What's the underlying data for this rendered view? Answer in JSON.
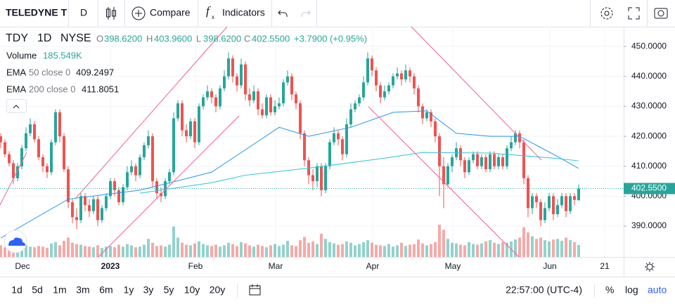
{
  "toolbar": {
    "symbol": "TELEDYNE T",
    "interval": "D",
    "compare": "Compare",
    "indicators": "Indicators"
  },
  "legend": {
    "symbol": "TDY",
    "interval": "1D",
    "exchange": "NYSE",
    "o_label": "O",
    "o": "398.6200",
    "h_label": "H",
    "h": "403.9600",
    "l_label": "L",
    "l": "398.6200",
    "c_label": "C",
    "c": "402.5500",
    "change": "+3.7900 (+0.95%)"
  },
  "bottom_bar": {
    "timeframes": [
      "1d",
      "5d",
      "1m",
      "3m",
      "6m",
      "1y",
      "3y",
      "5y",
      "10y",
      "20y"
    ],
    "time": "22:57:00 (UTC-4)",
    "percent": "%",
    "log": "log",
    "auto": "auto"
  },
  "chart_data": {
    "type": "candlestick",
    "up_color": "#26a69a",
    "down_color": "#ef5350",
    "open": [
      420,
      418,
      414,
      411,
      406,
      410,
      416,
      421,
      424,
      419,
      413,
      410,
      408,
      418,
      428,
      420,
      409,
      398,
      393,
      392,
      400,
      397,
      395,
      399,
      392,
      396,
      400,
      405,
      402,
      398,
      403,
      408,
      410,
      407,
      413,
      417,
      420,
      405,
      401,
      400,
      405,
      408,
      426,
      431,
      422,
      420,
      425,
      418,
      430,
      433,
      435,
      433,
      430,
      436,
      440,
      446,
      440,
      437,
      444,
      434,
      432,
      435,
      429,
      427,
      433,
      428,
      430,
      431,
      438,
      440,
      434,
      431,
      421,
      412,
      407,
      405,
      410,
      402,
      410,
      418,
      421,
      419,
      414,
      424,
      429,
      431,
      433,
      438,
      446,
      442,
      437,
      433,
      435,
      437,
      440,
      441,
      439,
      442,
      440,
      436,
      430,
      426,
      428,
      425,
      420,
      410,
      404,
      410,
      413,
      416,
      412,
      408,
      412,
      414,
      410,
      413,
      409,
      414,
      410,
      413,
      410,
      416,
      418,
      421,
      418,
      406,
      396,
      400,
      398,
      392,
      396,
      400,
      394,
      397,
      400,
      395,
      400,
      398.62
    ],
    "high": [
      421,
      419,
      415,
      412,
      411,
      417,
      423,
      426,
      425,
      420,
      414,
      411,
      419,
      429,
      429,
      421,
      410,
      399,
      396,
      401,
      401,
      399,
      400,
      400,
      397,
      401,
      406,
      406,
      403,
      404,
      410,
      412,
      411,
      414,
      418,
      422,
      421,
      406,
      403,
      406,
      409,
      428,
      432,
      432,
      424,
      426,
      426,
      431,
      434,
      437,
      436,
      434,
      437,
      442,
      448,
      447,
      441,
      446,
      445,
      436,
      437,
      436,
      431,
      434,
      434,
      432,
      433,
      439,
      442,
      441,
      435,
      432,
      422,
      413,
      409,
      411,
      411,
      411,
      419,
      423,
      422,
      420,
      426,
      431,
      432,
      434,
      440,
      448,
      447,
      443,
      438,
      437,
      438,
      441,
      443,
      442,
      444,
      443,
      441,
      437,
      431,
      429,
      429,
      426,
      421,
      413,
      411,
      414,
      418,
      417,
      413,
      413,
      415,
      415,
      414,
      414,
      415,
      415,
      414,
      414,
      417,
      420,
      422,
      422,
      419,
      407,
      401,
      401,
      399,
      398,
      401,
      401,
      399,
      401,
      401,
      401,
      401,
      403.96
    ],
    "low": [
      416,
      413,
      410,
      404,
      405,
      409,
      415,
      420,
      418,
      412,
      408,
      406,
      407,
      417,
      418,
      408,
      396,
      391,
      389,
      391,
      395,
      393,
      394,
      390,
      391,
      395,
      399,
      400,
      397,
      397,
      402,
      407,
      405,
      406,
      412,
      416,
      403,
      399,
      398,
      399,
      404,
      407,
      425,
      420,
      418,
      419,
      416,
      417,
      429,
      432,
      431,
      428,
      429,
      435,
      439,
      438,
      435,
      436,
      432,
      430,
      431,
      427,
      426,
      426,
      427,
      427,
      429,
      430,
      437,
      432,
      429,
      419,
      410,
      404,
      402,
      403,
      400,
      401,
      409,
      417,
      417,
      412,
      413,
      423,
      428,
      430,
      432,
      437,
      440,
      435,
      431,
      432,
      434,
      436,
      439,
      437,
      438,
      438,
      434,
      428,
      424,
      425,
      423,
      418,
      400,
      396,
      403,
      408,
      412,
      410,
      406,
      407,
      411,
      409,
      409,
      408,
      408,
      409,
      409,
      409,
      409,
      415,
      417,
      416,
      404,
      393,
      394,
      396,
      390,
      391,
      395,
      392,
      393,
      396,
      393,
      394,
      397,
      398.62
    ],
    "close": [
      418,
      414,
      411,
      406,
      410,
      416,
      421,
      424,
      419,
      413,
      410,
      408,
      418,
      428,
      420,
      409,
      398,
      393,
      392,
      400,
      397,
      395,
      399,
      392,
      396,
      400,
      405,
      402,
      398,
      403,
      408,
      410,
      407,
      413,
      417,
      420,
      405,
      401,
      400,
      405,
      408,
      426,
      431,
      422,
      420,
      425,
      418,
      430,
      433,
      435,
      433,
      430,
      436,
      440,
      446,
      440,
      437,
      444,
      434,
      432,
      435,
      429,
      427,
      433,
      428,
      430,
      431,
      438,
      440,
      434,
      431,
      421,
      412,
      407,
      405,
      410,
      402,
      410,
      418,
      421,
      419,
      414,
      424,
      429,
      431,
      433,
      438,
      446,
      442,
      437,
      433,
      435,
      437,
      440,
      441,
      439,
      442,
      440,
      436,
      430,
      426,
      428,
      425,
      420,
      410,
      404,
      410,
      413,
      416,
      412,
      408,
      412,
      414,
      410,
      413,
      409,
      414,
      410,
      413,
      410,
      416,
      418,
      421,
      418,
      406,
      396,
      400,
      398,
      392,
      396,
      400,
      394,
      397,
      400,
      395,
      400,
      398.76,
      402.55
    ],
    "volume": [
      180000,
      150000,
      160000,
      140000,
      170000,
      200000,
      190000,
      160000,
      150000,
      170000,
      160000,
      140000,
      210000,
      230000,
      180000,
      250000,
      300000,
      220000,
      200000,
      190000,
      170000,
      160000,
      150000,
      180000,
      140000,
      160000,
      170000,
      150000,
      190000,
      160000,
      200000,
      180000,
      150000,
      160000,
      190000,
      280000,
      220000,
      170000,
      180000,
      160000,
      190000,
      470000,
      300000,
      220000,
      190000,
      180000,
      210000,
      240000,
      200000,
      180000,
      170000,
      190000,
      160000,
      180000,
      220000,
      200000,
      170000,
      230000,
      210000,
      180000,
      160000,
      190000,
      170000,
      150000,
      180000,
      200000,
      170000,
      190000,
      250000,
      180000,
      170000,
      260000,
      310000,
      220000,
      240000,
      200000,
      360000,
      280000,
      230000,
      210000,
      190000,
      200000,
      240000,
      220000,
      180000,
      200000,
      230000,
      260000,
      220000,
      190000,
      180000,
      170000,
      200000,
      160000,
      180000,
      220000,
      170000,
      190000,
      200000,
      270000,
      210000,
      180000,
      200000,
      230000,
      500000,
      420000,
      280000,
      220000,
      210000,
      190000,
      180000,
      230000,
      200000,
      190000,
      210000,
      240000,
      260000,
      220000,
      200000,
      230000,
      220000,
      240000,
      270000,
      300000,
      460000,
      380000,
      320000,
      280000,
      300000,
      260000,
      240000,
      270000,
      280000,
      250000,
      300000,
      260000,
      230000,
      185549
    ],
    "volume_name": "Volume",
    "volume_label": "185.549K",
    "ema": [
      {
        "name": "EMA",
        "params": "50 close 0",
        "value_label": "409.2497",
        "color": "#2196f3",
        "x": [
          0,
          16,
          33,
          50,
          66,
          73,
          83,
          93,
          101,
          108,
          116,
          123,
          131,
          137
        ],
        "values": [
          386,
          399,
          402,
          408,
          423,
          420,
          423,
          428,
          428.5,
          421,
          420,
          420,
          414,
          409.2497
        ]
      },
      {
        "name": "EMA",
        "params": "200 close 0",
        "value_label": "411.8051",
        "color": "#26c6da",
        "x": [
          33,
          50,
          58,
          75,
          91,
          100,
          116,
          131,
          137
        ],
        "values": [
          401,
          404.5,
          407,
          409.7,
          412.7,
          414.6,
          414.4,
          412.7,
          411.8051
        ]
      }
    ],
    "ylim": [
      379.7,
      456.6
    ],
    "yticks": [
      {
        "value": 390,
        "label": "390.0000"
      },
      {
        "value": 400,
        "label": "400.0000"
      },
      {
        "value": 410,
        "label": "410.0000"
      },
      {
        "value": 420,
        "label": "420.0000"
      },
      {
        "value": 430,
        "label": "430.0000"
      },
      {
        "value": 440,
        "label": "440.0000"
      },
      {
        "value": 450,
        "label": "450.0000"
      }
    ],
    "last_price": {
      "value": 402.55,
      "label": "402.5500"
    },
    "x_labels": [
      "Dec",
      "2023",
      "Feb",
      "Mar",
      "Apr",
      "May",
      "Jun",
      "21"
    ]
  }
}
